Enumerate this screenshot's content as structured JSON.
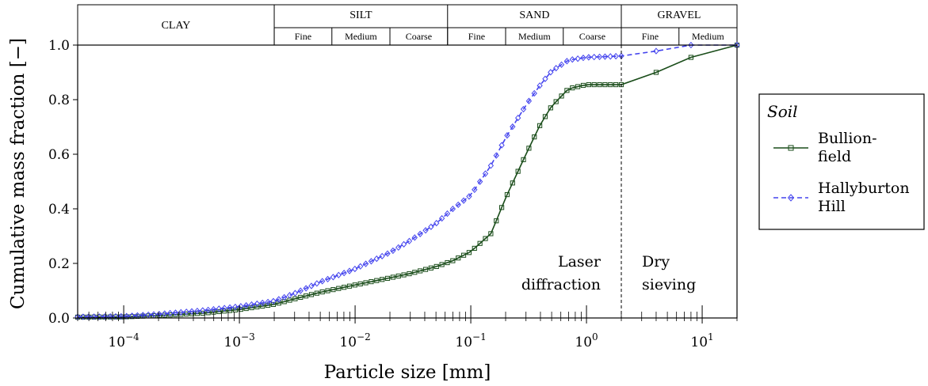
{
  "chart_data": {
    "type": "line",
    "title": "",
    "xlabel": "Particle size [mm]",
    "ylabel": "Cumulative mass fraction [−]",
    "xscale": "log",
    "xlim": [
      4e-05,
      20
    ],
    "ylim": [
      0,
      1.0
    ],
    "x_ticks": [
      {
        "value": 0.0001,
        "base": "10",
        "exp": "−4"
      },
      {
        "value": 0.001,
        "base": "10",
        "exp": "−3"
      },
      {
        "value": 0.01,
        "base": "10",
        "exp": "−2"
      },
      {
        "value": 0.1,
        "base": "10",
        "exp": "−1"
      },
      {
        "value": 1,
        "base": "10",
        "exp": "0"
      },
      {
        "value": 10,
        "base": "10",
        "exp": "1"
      }
    ],
    "y_ticks": [
      "0.0",
      "0.2",
      "0.4",
      "0.6",
      "0.8",
      "1.0"
    ],
    "grid": false,
    "legend": {
      "title": "Soil",
      "placement": "right, outside plot",
      "entries": [
        {
          "label_lines": [
            "Bullion-",
            "field"
          ],
          "series": 0
        },
        {
          "label_lines": [
            "Hallyburton",
            "Hill"
          ],
          "series": 1
        }
      ]
    },
    "series": [
      {
        "name": "Bullionfield",
        "color": "#1a4d1a",
        "line_style": "solid",
        "marker": "square",
        "x": [
          4e-05,
          0.0001,
          0.0002,
          0.0005,
          0.001,
          0.002,
          0.003,
          0.005,
          0.01,
          0.02,
          0.03,
          0.05,
          0.07,
          0.1,
          0.15,
          0.2,
          0.3,
          0.4,
          0.5,
          0.7,
          1.0,
          2.0,
          4.0,
          8.0,
          20.0
        ],
        "y": [
          0.003,
          0.004,
          0.009,
          0.018,
          0.031,
          0.05,
          0.07,
          0.094,
          0.121,
          0.147,
          0.163,
          0.188,
          0.21,
          0.243,
          0.31,
          0.44,
          0.6,
          0.71,
          0.776,
          0.84,
          0.855,
          0.855,
          0.9,
          0.955,
          1.0
        ]
      },
      {
        "name": "Hallyburton Hill",
        "color": "#4444ee",
        "line_style": "dashed",
        "marker": "diamond",
        "x": [
          4e-05,
          0.0001,
          0.0002,
          0.0005,
          0.001,
          0.002,
          0.003,
          0.005,
          0.01,
          0.02,
          0.03,
          0.05,
          0.07,
          0.1,
          0.15,
          0.2,
          0.3,
          0.4,
          0.5,
          0.7,
          1.0,
          2.0,
          4.0,
          8.0,
          20.0
        ],
        "y": [
          0.004,
          0.006,
          0.014,
          0.028,
          0.042,
          0.062,
          0.09,
          0.132,
          0.18,
          0.24,
          0.284,
          0.346,
          0.4,
          0.45,
          0.56,
          0.66,
          0.78,
          0.855,
          0.905,
          0.945,
          0.955,
          0.96,
          0.978,
          1.0,
          1.0
        ]
      }
    ],
    "annotations": {
      "divider_x": 2.0,
      "left_label_lines": [
        "Laser",
        "diffraction"
      ],
      "right_label_lines": [
        "Dry",
        "sieving"
      ]
    },
    "size_classes": {
      "groups": [
        {
          "label": "CLAY",
          "from": 4e-05,
          "to": 0.002
        },
        {
          "label": "SILT",
          "from": 0.002,
          "to": 0.063
        },
        {
          "label": "SAND",
          "from": 0.063,
          "to": 2.0
        },
        {
          "label": "GRAVEL",
          "from": 2.0,
          "to": 20.0
        }
      ],
      "subclasses": [
        {
          "label": "Fine",
          "from": 0.002,
          "to": 0.0063
        },
        {
          "label": "Medium",
          "from": 0.0063,
          "to": 0.02
        },
        {
          "label": "Coarse",
          "from": 0.02,
          "to": 0.063
        },
        {
          "label": "Fine",
          "from": 0.063,
          "to": 0.2
        },
        {
          "label": "Medium",
          "from": 0.2,
          "to": 0.63
        },
        {
          "label": "Coarse",
          "from": 0.63,
          "to": 2.0
        },
        {
          "label": "Fine",
          "from": 2.0,
          "to": 6.3
        },
        {
          "label": "Medium",
          "from": 6.3,
          "to": 20.0
        }
      ]
    }
  }
}
